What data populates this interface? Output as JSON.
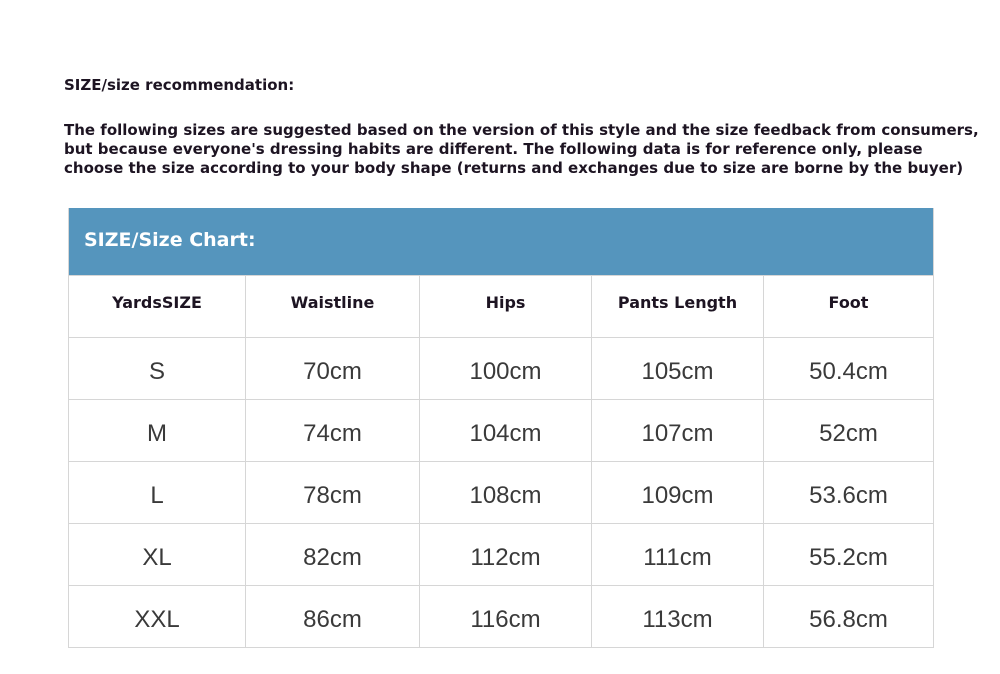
{
  "title": "SIZE/size recommendation:",
  "intro_lines": [
    "The following sizes are suggested based on the version of this style and the size feedback from consumers,",
    "but because everyone's dressing habits are different. The following data is for reference only, please",
    "choose the size according to your body shape (returns and exchanges due to size are borne by the buyer)"
  ],
  "table": {
    "banner": "SIZE/Size Chart:",
    "banner_color": "#5595bd",
    "headers": [
      "YardsSIZE",
      "Waistline",
      "Hips",
      "Pants Length",
      "Foot"
    ],
    "rows": [
      [
        "S",
        "70cm",
        "100cm",
        "105cm",
        "50.4cm"
      ],
      [
        "M",
        "74cm",
        "104cm",
        "107cm",
        "52cm"
      ],
      [
        "L",
        "78cm",
        "108cm",
        "109cm",
        "53.6cm"
      ],
      [
        "XL",
        "82cm",
        "112cm",
        "111cm",
        "55.2cm"
      ],
      [
        "XXL",
        "86cm",
        "116cm",
        "113cm",
        "56.8cm"
      ]
    ]
  }
}
